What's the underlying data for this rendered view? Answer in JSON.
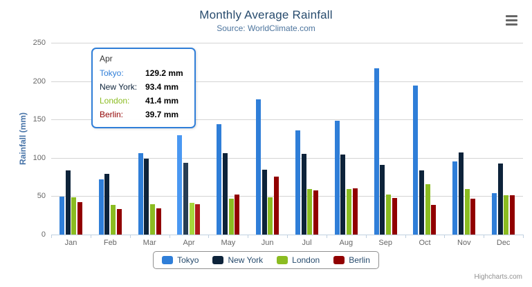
{
  "chart": {
    "title": "Monthly Average Rainfall",
    "subtitle": "Source: WorldClimate.com",
    "credits": "Highcharts.com",
    "menu_icon": "hamburger-icon"
  },
  "tooltip": {
    "header": "Apr",
    "rows": [
      {
        "label": "Tokyo:",
        "value": "129.2 mm",
        "color": "#2f7ed8"
      },
      {
        "label": "New York:",
        "value": "93.4 mm",
        "color": "#0d233a"
      },
      {
        "label": "London:",
        "value": "41.4 mm",
        "color": "#8bbc21"
      },
      {
        "label": "Berlin:",
        "value": "39.7 mm",
        "color": "#910000"
      }
    ]
  },
  "chart_data": {
    "type": "bar",
    "title": "Monthly Average Rainfall",
    "subtitle": "Source: WorldClimate.com",
    "xlabel": "",
    "ylabel": "Rainfall (mm)",
    "ylim": [
      0,
      250
    ],
    "y_ticks": [
      0,
      50,
      100,
      150,
      200,
      250
    ],
    "grid": true,
    "legend_position": "bottom",
    "highlighted_category": "Apr",
    "categories": [
      "Jan",
      "Feb",
      "Mar",
      "Apr",
      "May",
      "Jun",
      "Jul",
      "Aug",
      "Sep",
      "Oct",
      "Nov",
      "Dec"
    ],
    "series": [
      {
        "name": "Tokyo",
        "color": "#2f7ed8",
        "hover_color": "#4a98f2",
        "values": [
          49.9,
          71.5,
          106.4,
          129.2,
          144.0,
          176.0,
          135.6,
          148.5,
          216.4,
          194.1,
          95.6,
          54.4
        ]
      },
      {
        "name": "New York",
        "color": "#0d233a",
        "hover_color": "#273d54",
        "values": [
          83.6,
          78.8,
          98.5,
          93.4,
          106.0,
          84.5,
          105.0,
          104.3,
          91.2,
          83.5,
          106.6,
          92.3
        ]
      },
      {
        "name": "London",
        "color": "#8bbc21",
        "hover_color": "#a6d73b",
        "values": [
          48.9,
          38.8,
          39.3,
          41.4,
          47.0,
          48.3,
          59.0,
          59.6,
          52.4,
          65.2,
          59.3,
          51.2
        ]
      },
      {
        "name": "Berlin",
        "color": "#910000",
        "hover_color": "#ac1a1a",
        "values": [
          42.4,
          33.2,
          34.5,
          39.7,
          52.6,
          75.5,
          57.4,
          60.4,
          47.6,
          39.1,
          46.8,
          51.1
        ]
      }
    ]
  }
}
